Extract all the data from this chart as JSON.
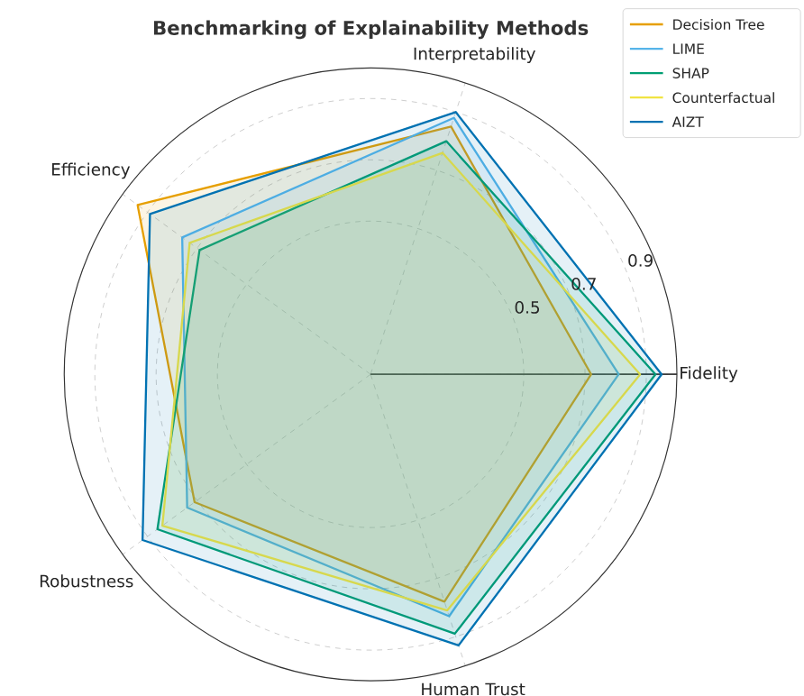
{
  "chart_data": {
    "type": "radar",
    "title": "Benchmarking of Explainability Methods",
    "categories": [
      "Interpretability",
      "Fidelity",
      "Human Trust",
      "Robustness",
      "Efficiency"
    ],
    "ylim": [
      0,
      1
    ],
    "yticks": [
      0.5,
      0.7,
      0.9
    ],
    "grid": true,
    "legend": "top right",
    "series": [
      {
        "name": "Decision Tree",
        "color": "#e69f00",
        "values": [
          0.85,
          0.72,
          0.78,
          0.71,
          0.94
        ]
      },
      {
        "name": "LIME",
        "color": "#56b4e9",
        "values": [
          0.88,
          0.81,
          0.83,
          0.74,
          0.76
        ]
      },
      {
        "name": "SHAP",
        "color": "#009e73",
        "values": [
          0.8,
          0.93,
          0.89,
          0.86,
          0.69
        ]
      },
      {
        "name": "Counterfactual",
        "color": "#f0e442",
        "values": [
          0.76,
          0.88,
          0.81,
          0.84,
          0.73
        ]
      },
      {
        "name": "AIZT",
        "color": "#0072b2",
        "values": [
          0.9,
          0.95,
          0.93,
          0.92,
          0.89
        ]
      }
    ]
  }
}
